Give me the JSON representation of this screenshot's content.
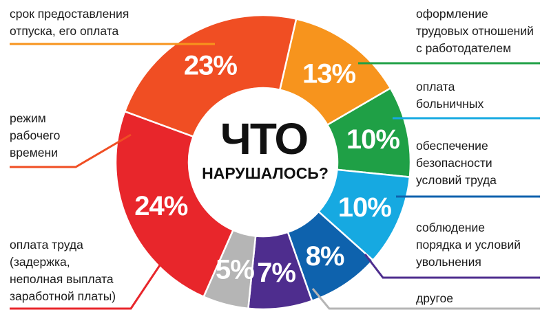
{
  "chart_data": {
    "type": "pie",
    "title": "ЧТО НАРУШАЛОСЬ?",
    "center_title": [
      "ЧТО",
      "НАРУШАЛОСЬ?"
    ],
    "unit": "%",
    "slices": [
      {
        "label": [
          "срок предоставления",
          "отпуска, его оплата"
        ],
        "value": 13,
        "color": "#f7941d"
      },
      {
        "label": [
          "оформление",
          "трудовых отношений",
          "с работодателем"
        ],
        "value": 10,
        "color": "#1fa046"
      },
      {
        "label": [
          "оплата",
          "больничных"
        ],
        "value": 10,
        "color": "#16a9e1"
      },
      {
        "label": [
          "обеспечение",
          "безопасности",
          "условий труда"
        ],
        "value": 8,
        "color": "#0e62ad"
      },
      {
        "label": [
          "соблюдение",
          "порядка и условий",
          "увольнения"
        ],
        "value": 7,
        "color": "#4e2d8e"
      },
      {
        "label": [
          "другое"
        ],
        "value": 5,
        "color": "#b5b5b5"
      },
      {
        "label": [
          "оплата труда",
          "(задержка,",
          "неполная выплата",
          "заработной платы)"
        ],
        "value": 24,
        "color": "#e8262b"
      },
      {
        "label": [
          "режим",
          "рабочего",
          "времени"
        ],
        "value": 23,
        "color": "#f04e23"
      }
    ]
  }
}
